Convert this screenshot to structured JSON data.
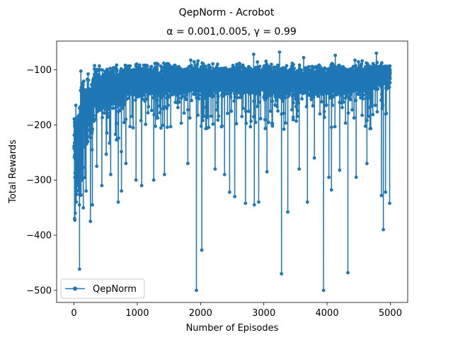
{
  "chart_data": {
    "type": "line",
    "suptitle": "QepNorm - Acrobot",
    "title": "α = 0.001,0.005, γ = 0.99",
    "xlabel": "Number of Episodes",
    "ylabel": "Total Rewards",
    "xlim": [
      -275,
      5275
    ],
    "ylim": [
      -522,
      -48
    ],
    "xticks": [
      0,
      1000,
      2000,
      3000,
      4000,
      5000
    ],
    "xtick_labels": [
      "0",
      "1000",
      "2000",
      "3000",
      "4000",
      "5000"
    ],
    "yticks": [
      -500,
      -400,
      -300,
      -200,
      -100
    ],
    "ytick_labels": [
      "−500",
      "−400",
      "−300",
      "−200",
      "−100"
    ],
    "grid": false,
    "legend_position": "lower-left",
    "series": [
      {
        "name": "QepNorm",
        "color": "#1f77b4",
        "marker": "circle",
        "n_episodes": 5000,
        "regimes": [
          {
            "x_start": 0,
            "x_end": 100,
            "center": -245,
            "spread": 60
          },
          {
            "x_start": 100,
            "x_end": 300,
            "center": -175,
            "spread": 45
          },
          {
            "x_start": 300,
            "x_end": 800,
            "center": -135,
            "spread": 30
          },
          {
            "x_start": 800,
            "x_end": 4700,
            "center": -120,
            "spread": 22
          },
          {
            "x_start": 4700,
            "x_end": 5000,
            "center": -112,
            "spread": 18
          }
        ],
        "drops": [
          {
            "x": 8,
            "y": -370
          },
          {
            "x": 20,
            "y": -360
          },
          {
            "x": 35,
            "y": -340
          },
          {
            "x": 60,
            "y": -310
          },
          {
            "x": 85,
            "y": -345
          },
          {
            "x": 130,
            "y": -300
          },
          {
            "x": 190,
            "y": -320
          },
          {
            "x": 260,
            "y": -375
          },
          {
            "x": 290,
            "y": -345
          },
          {
            "x": 360,
            "y": -275
          },
          {
            "x": 440,
            "y": -310
          },
          {
            "x": 580,
            "y": -290
          },
          {
            "x": 700,
            "y": -340
          },
          {
            "x": 750,
            "y": -320
          },
          {
            "x": 820,
            "y": -270
          },
          {
            "x": 980,
            "y": -300
          },
          {
            "x": 1070,
            "y": -310
          },
          {
            "x": 1260,
            "y": -300
          },
          {
            "x": 1430,
            "y": -290
          },
          {
            "x": 1800,
            "y": -270
          },
          {
            "x": 1935,
            "y": -500
          },
          {
            "x": 2020,
            "y": -427
          },
          {
            "x": 2230,
            "y": -280
          },
          {
            "x": 2380,
            "y": -290
          },
          {
            "x": 2460,
            "y": -322
          },
          {
            "x": 2540,
            "y": -330
          },
          {
            "x": 2710,
            "y": -342
          },
          {
            "x": 2850,
            "y": -345
          },
          {
            "x": 2920,
            "y": -340
          },
          {
            "x": 3050,
            "y": -285
          },
          {
            "x": 3280,
            "y": -470
          },
          {
            "x": 3380,
            "y": -358
          },
          {
            "x": 3560,
            "y": -280
          },
          {
            "x": 3690,
            "y": -340
          },
          {
            "x": 3800,
            "y": -260
          },
          {
            "x": 3945,
            "y": -500
          },
          {
            "x": 4030,
            "y": -295
          },
          {
            "x": 4070,
            "y": -318
          },
          {
            "x": 4200,
            "y": -282
          },
          {
            "x": 4330,
            "y": -468
          },
          {
            "x": 4460,
            "y": -295
          },
          {
            "x": 4630,
            "y": -270
          },
          {
            "x": 4860,
            "y": -328
          },
          {
            "x": 4890,
            "y": -390
          },
          {
            "x": 4925,
            "y": -322
          },
          {
            "x": 4990,
            "y": -342
          }
        ],
        "peaks": [
          {
            "x": 2840,
            "y": -72
          },
          {
            "x": 3250,
            "y": -68
          },
          {
            "x": 4780,
            "y": -70
          },
          {
            "x": 4130,
            "y": -74
          },
          {
            "x": 3630,
            "y": -78
          }
        ]
      }
    ]
  }
}
